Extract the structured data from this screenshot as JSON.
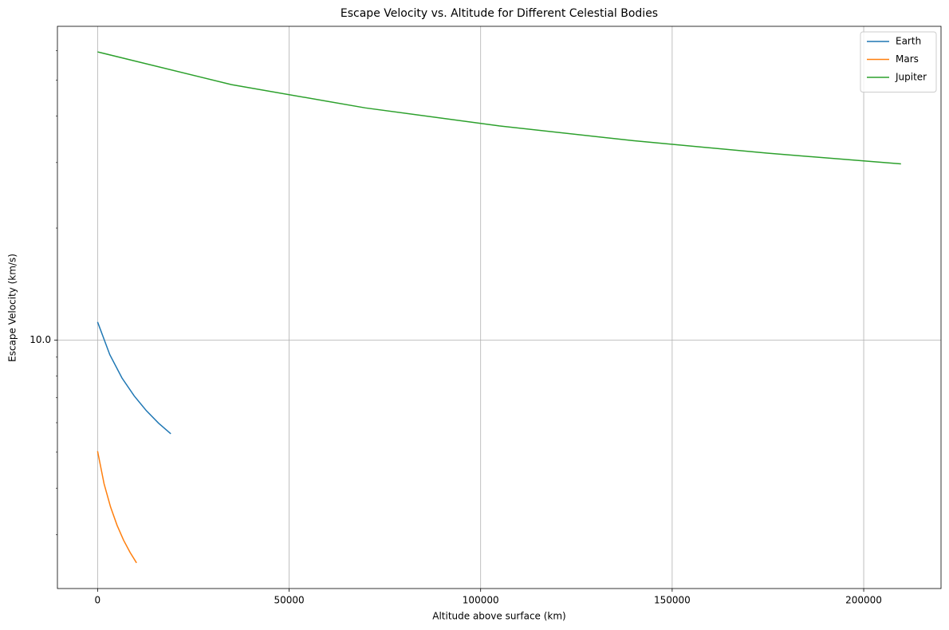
{
  "chart_data": {
    "type": "line",
    "title": "Escape Velocity vs. Altitude for Different Celestial Bodies",
    "x_label": "Altitude above surface (km)",
    "y_label": "Escape Velocity (km/s)",
    "y_scale": "log",
    "grid": true,
    "legend": "upper right",
    "xlim": [
      -10485,
      220185
    ],
    "ylim": [
      2.15,
      69.7
    ],
    "xticks": [
      0,
      50000,
      100000,
      150000,
      200000
    ],
    "yticks": [
      {
        "value": 10,
        "label": "10.0"
      }
    ],
    "yminorticks": [
      3,
      4,
      5,
      6,
      7,
      8,
      9,
      20,
      30,
      40,
      50,
      60
    ],
    "series": [
      {
        "name": "Earth",
        "color": "#1f77b4",
        "x": [
          0,
          3186,
          6371,
          9557,
          12742,
          15928,
          19113
        ],
        "values": [
          11.19,
          9.14,
          7.91,
          7.08,
          6.46,
          5.98,
          5.6
        ]
      },
      {
        "name": "Mars",
        "color": "#ff7f0e",
        "x": [
          0,
          1695,
          3390,
          5085,
          6780,
          8475,
          10170
        ],
        "values": [
          5.03,
          4.11,
          3.56,
          3.18,
          2.9,
          2.69,
          2.52
        ]
      },
      {
        "name": "Jupiter",
        "color": "#2ca02c",
        "x": [
          0,
          34955,
          69911,
          104866,
          139822,
          174777,
          209733
        ],
        "values": [
          59.5,
          48.58,
          42.07,
          37.63,
          34.35,
          31.8,
          29.75
        ]
      }
    ]
  }
}
